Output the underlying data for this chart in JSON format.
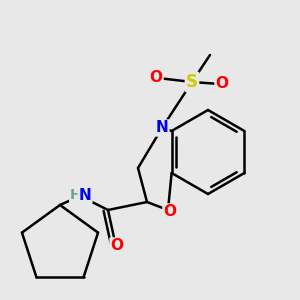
{
  "background_color": "#e8e8e8",
  "atom_colors": {
    "C": "#000000",
    "N": "#0000EE",
    "O": "#FF0000",
    "S": "#CCCC00",
    "H": "#6fa0a0"
  },
  "line_color": "#000000",
  "line_width": 1.8,
  "font_size": 10,
  "figsize": [
    3.0,
    3.0
  ],
  "dpi": 100
}
